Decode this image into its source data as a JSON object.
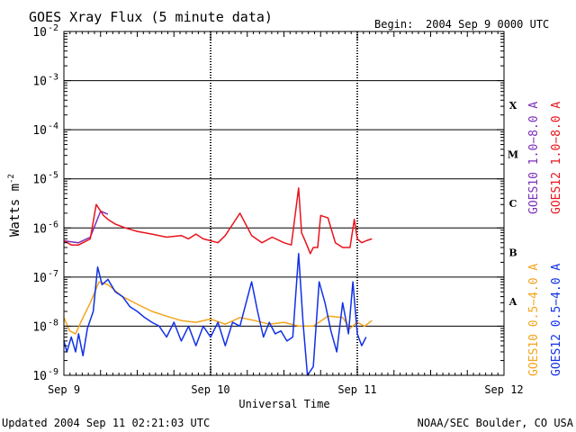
{
  "chart_data": {
    "type": "line",
    "title": "GOES Xray Flux (5 minute data)",
    "begin_label": "Begin:",
    "begin_value": "2004 Sep 9 0000 UTC",
    "xlabel": "Universal Time",
    "ylabel": "Watts m",
    "ylabel_exponent": "-2",
    "y_scale": "log",
    "ylim": [
      1e-09,
      0.01
    ],
    "y_ticks": [
      {
        "base": "10",
        "exp": "-2",
        "value": 0.01
      },
      {
        "base": "10",
        "exp": "-3",
        "value": 0.001
      },
      {
        "base": "10",
        "exp": "-4",
        "value": 0.0001
      },
      {
        "base": "10",
        "exp": "-5",
        "value": 1e-05
      },
      {
        "base": "10",
        "exp": "-6",
        "value": 1e-06
      },
      {
        "base": "10",
        "exp": "-7",
        "value": 1e-07
      },
      {
        "base": "10",
        "exp": "-8",
        "value": 1e-08
      },
      {
        "base": "10",
        "exp": "-9",
        "value": 1e-09
      }
    ],
    "x_unit": "days since 2004 Sep 9 0000 UTC",
    "xlim": [
      0,
      3
    ],
    "x_ticks": [
      {
        "label": "Sep 9",
        "value": 0
      },
      {
        "label": "Sep 10",
        "value": 1
      },
      {
        "label": "Sep 11",
        "value": 2
      },
      {
        "label": "Sep 12",
        "value": 3
      }
    ],
    "grid": "horizontal lines at each decade; dashed vertical day markers",
    "flare_classes": [
      {
        "label": "X",
        "value": 0.000316
      },
      {
        "label": "M",
        "value": 3.16e-05
      },
      {
        "label": "C",
        "value": 3.16e-06
      },
      {
        "label": "B",
        "value": 3.16e-07
      },
      {
        "label": "A",
        "value": 3.16e-08
      }
    ],
    "series": [
      {
        "name": "GOES10 1.0−8.0 A",
        "color": "#7a2fb8",
        "x": [
          0.0,
          0.05,
          0.1,
          0.18,
          0.25,
          0.3
        ],
        "y": [
          5.5e-07,
          5.2e-07,
          5e-07,
          6.5e-07,
          2.2e-06,
          1.9e-06
        ]
      },
      {
        "name": "GOES12 1.0−8.0 A",
        "color": "#e8141c",
        "x": [
          0.0,
          0.05,
          0.1,
          0.18,
          0.22,
          0.27,
          0.3,
          0.35,
          0.42,
          0.5,
          0.6,
          0.7,
          0.8,
          0.85,
          0.9,
          0.95,
          1.0,
          1.05,
          1.1,
          1.2,
          1.28,
          1.35,
          1.42,
          1.5,
          1.55,
          1.6,
          1.62,
          1.65,
          1.68,
          1.7,
          1.73,
          1.75,
          1.8,
          1.85,
          1.9,
          1.95,
          1.98,
          2.0,
          2.03,
          2.06,
          2.1
        ],
        "y": [
          5.5e-07,
          4.5e-07,
          4.5e-07,
          6e-07,
          3e-06,
          1.8e-06,
          1.5e-06,
          1.2e-06,
          1e-06,
          8.5e-07,
          7.5e-07,
          6.5e-07,
          7e-07,
          6e-07,
          7.5e-07,
          6e-07,
          5.5e-07,
          5e-07,
          7e-07,
          2e-06,
          7e-07,
          5e-07,
          6.5e-07,
          5e-07,
          4.5e-07,
          6.5e-06,
          8e-07,
          5e-07,
          3e-07,
          4e-07,
          4e-07,
          1.8e-06,
          1.6e-06,
          5e-07,
          4e-07,
          4e-07,
          1.5e-06,
          6e-07,
          5e-07,
          5.5e-07,
          6e-07
        ]
      },
      {
        "name": "GOES10 0.5−4.0 A",
        "color": "#f2a51c",
        "x": [
          0.0,
          0.04,
          0.08,
          0.12,
          0.18,
          0.24,
          0.3,
          0.4,
          0.5,
          0.6,
          0.7,
          0.8,
          0.9,
          1.0,
          1.1,
          1.2,
          1.3,
          1.4,
          1.5,
          1.6,
          1.7,
          1.8,
          1.9,
          1.95,
          2.0,
          2.05,
          2.1
        ],
        "y": [
          1.5e-08,
          8e-09,
          7e-09,
          1.3e-08,
          3e-08,
          8e-08,
          7e-08,
          4e-08,
          2.8e-08,
          2e-08,
          1.6e-08,
          1.3e-08,
          1.2e-08,
          1.4e-08,
          1.1e-08,
          1.5e-08,
          1.3e-08,
          1.1e-08,
          1.2e-08,
          1e-08,
          1e-08,
          1.6e-08,
          1.5e-08,
          9e-09,
          1.2e-08,
          1e-08,
          1.3e-08
        ]
      },
      {
        "name": "GOES12 0.5−4.0 A",
        "color": "#1030e6",
        "x": [
          0.0,
          0.02,
          0.05,
          0.08,
          0.1,
          0.13,
          0.16,
          0.2,
          0.23,
          0.26,
          0.3,
          0.35,
          0.4,
          0.45,
          0.5,
          0.55,
          0.6,
          0.65,
          0.7,
          0.75,
          0.8,
          0.85,
          0.9,
          0.95,
          1.0,
          1.05,
          1.1,
          1.15,
          1.2,
          1.28,
          1.32,
          1.36,
          1.4,
          1.44,
          1.48,
          1.52,
          1.56,
          1.6,
          1.63,
          1.66,
          1.7,
          1.74,
          1.78,
          1.82,
          1.86,
          1.9,
          1.94,
          1.97,
          2.0,
          2.03,
          2.06
        ],
        "y": [
          5e-09,
          3e-09,
          6e-09,
          3e-09,
          7e-09,
          2.5e-09,
          9e-09,
          2e-08,
          1.6e-07,
          7e-08,
          9e-08,
          5e-08,
          4e-08,
          2.5e-08,
          2e-08,
          1.5e-08,
          1.2e-08,
          1e-08,
          6e-09,
          1.2e-08,
          5e-09,
          1e-08,
          4e-09,
          1e-08,
          6e-09,
          1.2e-08,
          4e-09,
          1.2e-08,
          1e-08,
          8e-08,
          2e-08,
          6e-09,
          1.2e-08,
          7e-09,
          8e-09,
          5e-09,
          6e-09,
          3e-07,
          1.2e-08,
          1e-09,
          1.5e-09,
          8e-08,
          3e-08,
          8e-09,
          3e-09,
          3e-08,
          7e-09,
          8e-08,
          7e-09,
          4e-09,
          6e-09
        ]
      }
    ]
  },
  "footer": {
    "updated": "Updated 2004 Sep 11 02:21:03 UTC",
    "credit": "NOAA/SEC Boulder, CO USA"
  }
}
